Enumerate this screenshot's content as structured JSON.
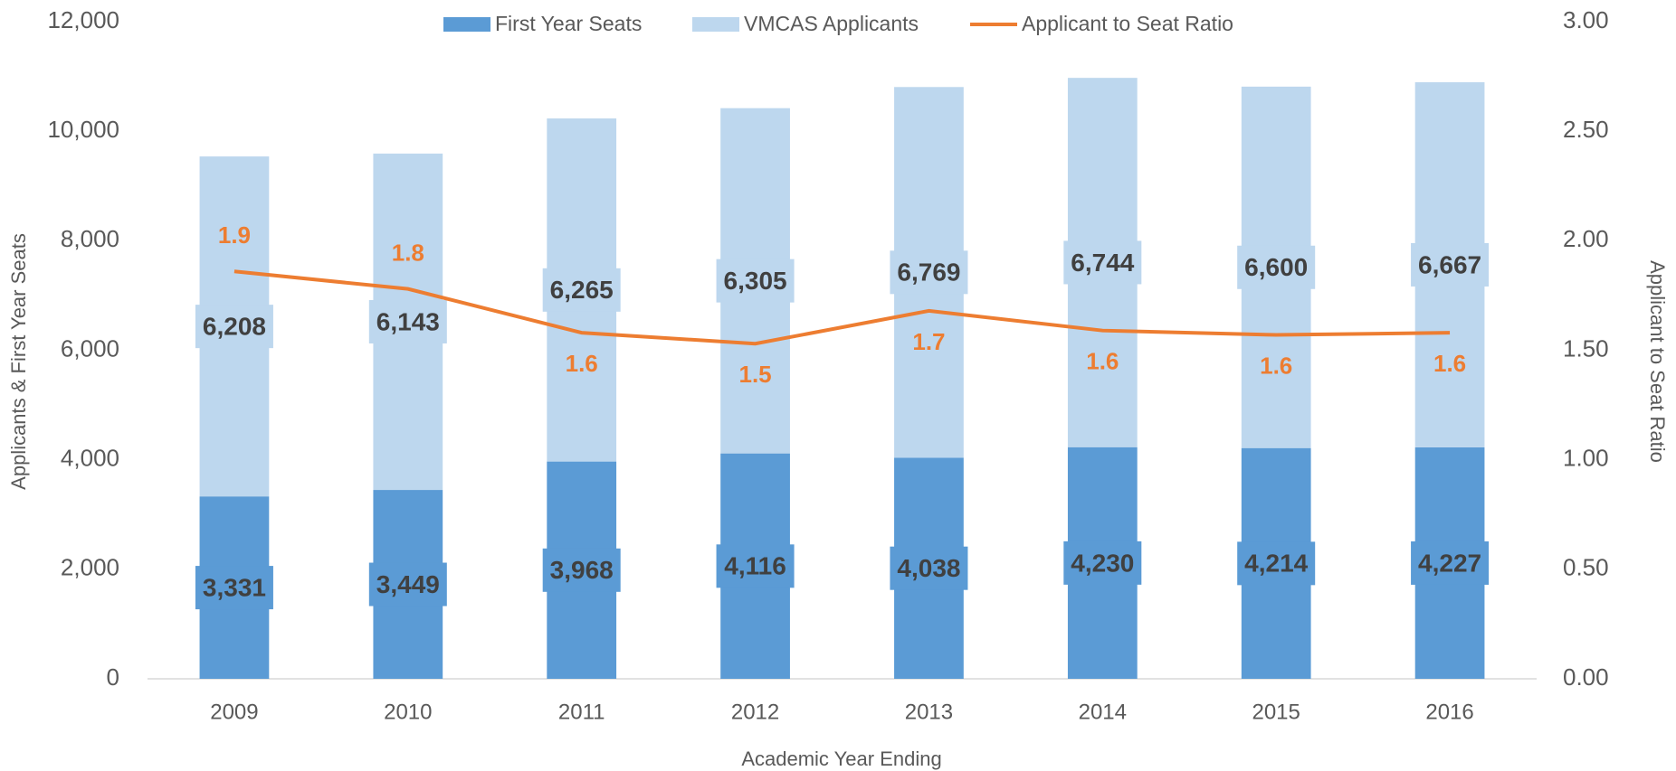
{
  "chart_data": {
    "type": "bar",
    "stacked": true,
    "categories": [
      "2009",
      "2010",
      "2011",
      "2012",
      "2013",
      "2014",
      "2015",
      "2016"
    ],
    "series": [
      {
        "name": "First Year Seats",
        "color": "#5b9bd5",
        "values": [
          3331,
          3449,
          3968,
          4116,
          4038,
          4230,
          4214,
          4227
        ],
        "value_labels": [
          "3,331",
          "3,449",
          "3,968",
          "4,116",
          "4,038",
          "4,230",
          "4,214",
          "4,227"
        ]
      },
      {
        "name": "VMCAS Applicants",
        "color": "#bdd7ee",
        "values": [
          6208,
          6143,
          6265,
          6305,
          6769,
          6744,
          6600,
          6667
        ],
        "value_labels": [
          "6,208",
          "6,143",
          "6,265",
          "6,305",
          "6,769",
          "6,744",
          "6,600",
          "6,667"
        ]
      },
      {
        "name": "Applicant to Seat Ratio",
        "color": "#ed7d31",
        "type": "line",
        "axis": "y2",
        "values": [
          1.86,
          1.78,
          1.58,
          1.53,
          1.68,
          1.59,
          1.57,
          1.58
        ],
        "value_labels": [
          "1.9",
          "1.8",
          "1.6",
          "1.5",
          "1.7",
          "1.6",
          "1.6",
          "1.6"
        ]
      }
    ],
    "x_label": "Academic Year Ending",
    "y_label": "Applicants & First Year Seats",
    "y2_label": "Applicant to Seat Ratio",
    "ylim": [
      0,
      12000
    ],
    "yticks": [
      0,
      {
        "value": 2000,
        "label": "2,000"
      },
      {
        "value": 4000,
        "label": "4,000"
      },
      {
        "value": 6000,
        "label": "6,000"
      },
      {
        "value": 8000,
        "label": "8,000"
      },
      {
        "value": 10000,
        "label": "10,000"
      },
      {
        "value": 12000,
        "label": "12,000"
      }
    ],
    "y2lim": [
      0,
      3
    ],
    "y2ticks": [
      {
        "value": 0,
        "label": "0.00"
      },
      {
        "value": 0.5,
        "label": "0.50"
      },
      {
        "value": 1,
        "label": "1.00"
      },
      {
        "value": 1.5,
        "label": "1.50"
      },
      {
        "value": 2,
        "label": "2.00"
      },
      {
        "value": 2.5,
        "label": "2.50"
      },
      {
        "value": 3,
        "label": "3.00"
      }
    ],
    "legend": "top",
    "grid": false
  }
}
